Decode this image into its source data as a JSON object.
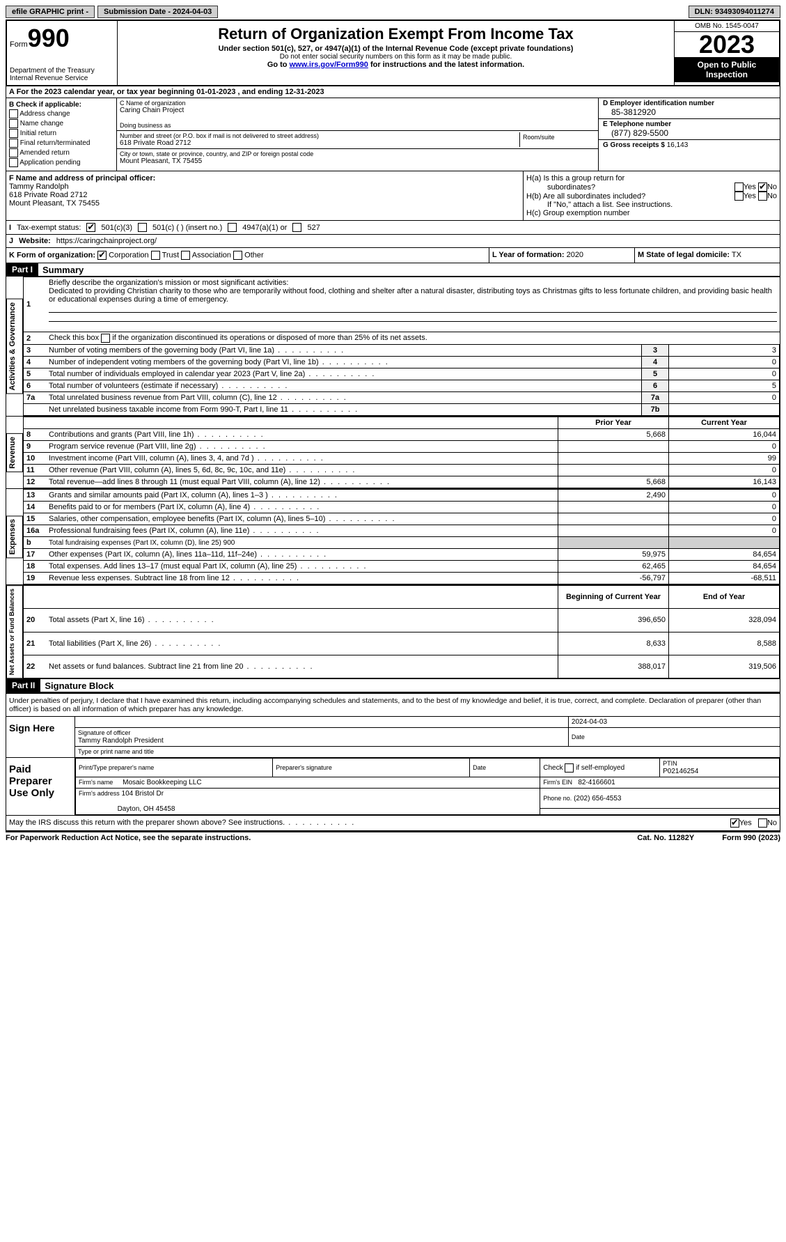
{
  "topbar": {
    "efile": "efile GRAPHIC print -",
    "submission": "Submission Date - 2024-04-03",
    "dln": "DLN: 93493094011274"
  },
  "header": {
    "form_label": "Form",
    "form_num": "990",
    "dept": "Department of the Treasury",
    "irs": "Internal Revenue Service",
    "title": "Return of Organization Exempt From Income Tax",
    "sub1": "Under section 501(c), 527, or 4947(a)(1) of the Internal Revenue Code (except private foundations)",
    "sub2": "Do not enter social security numbers on this form as it may be made public.",
    "sub3_pre": "Go to ",
    "sub3_link": "www.irs.gov/Form990",
    "sub3_post": " for instructions and the latest information.",
    "omb": "OMB No. 1545-0047",
    "year": "2023",
    "open": "Open to Public Inspection"
  },
  "rowA": "A  For the 2023 calendar year, or tax year beginning 01-01-2023    , and ending 12-31-2023",
  "boxB": {
    "label": "B Check if applicable:",
    "opts": [
      "Address change",
      "Name change",
      "Initial return",
      "Final return/terminated",
      "Amended return",
      "Application pending"
    ]
  },
  "boxC": {
    "name_lbl": "C Name of organization",
    "name": "Caring Chain Project",
    "dba_lbl": "Doing business as",
    "dba": "",
    "street_lbl": "Number and street (or P.O. box if mail is not delivered to street address)",
    "street": "618 Private Road 2712",
    "room_lbl": "Room/suite",
    "city_lbl": "City or town, state or province, country, and ZIP or foreign postal code",
    "city": "Mount Pleasant, TX  75455"
  },
  "boxD": {
    "ein_lbl": "D Employer identification number",
    "ein": "85-3812920",
    "phone_lbl": "E Telephone number",
    "phone": "(877) 829-5500",
    "gross_lbl": "G Gross receipts $",
    "gross": "16,143"
  },
  "boxF": {
    "lbl": "F  Name and address of principal officer:",
    "name": "Tammy Randolph",
    "street": "618 Private Road 2712",
    "city": "Mount Pleasant, TX  75455"
  },
  "boxH": {
    "ha": "H(a)  Is this a group return for",
    "ha2": "subordinates?",
    "hb": "H(b)  Are all subordinates included?",
    "hb2": "If \"No,\" attach a list. See instructions.",
    "hc": "H(c)  Group exemption number",
    "yes": "Yes",
    "no": "No"
  },
  "rowI": {
    "lbl": "Tax-exempt status:",
    "o1": "501(c)(3)",
    "o2": "501(c) (  ) (insert no.)",
    "o3": "4947(a)(1) or",
    "o4": "527"
  },
  "rowJ": {
    "lbl": "Website:",
    "val": "https://caringchainproject.org/"
  },
  "rowK": {
    "lbl": "K Form of organization:",
    "o1": "Corporation",
    "o2": "Trust",
    "o3": "Association",
    "o4": "Other"
  },
  "rowL": {
    "lbl": "L Year of formation:",
    "val": "2020"
  },
  "rowM": {
    "lbl": "M State of legal domicile:",
    "val": "TX"
  },
  "parts": {
    "p1": "Part I",
    "p1t": "Summary",
    "p2": "Part II",
    "p2t": "Signature Block"
  },
  "summary": {
    "l1_lbl": "Briefly describe the organization's mission or most significant activities:",
    "l1_text": "Dedicated to providing Christian charity to those who are temporarily without food, clothing and shelter after a natural disaster, distributing toys as Christmas gifts to less fortunate children, and providing basic health or educational expenses during a time of emergency.",
    "l2": "Check this box       if the organization discontinued its operations or disposed of more than 25% of its net assets.",
    "lines_ag": [
      {
        "n": "3",
        "t": "Number of voting members of the governing body (Part VI, line 1a)",
        "b": "3",
        "v": "3"
      },
      {
        "n": "4",
        "t": "Number of independent voting members of the governing body (Part VI, line 1b)",
        "b": "4",
        "v": "0"
      },
      {
        "n": "5",
        "t": "Total number of individuals employed in calendar year 2023 (Part V, line 2a)",
        "b": "5",
        "v": "0"
      },
      {
        "n": "6",
        "t": "Total number of volunteers (estimate if necessary)",
        "b": "6",
        "v": "5"
      },
      {
        "n": "7a",
        "t": "Total unrelated business revenue from Part VIII, column (C), line 12",
        "b": "7a",
        "v": "0"
      },
      {
        "n": "",
        "t": "Net unrelated business taxable income from Form 990-T, Part I, line 11",
        "b": "7b",
        "v": ""
      }
    ],
    "hdr_prior": "Prior Year",
    "hdr_current": "Current Year",
    "rev": [
      {
        "n": "8",
        "t": "Contributions and grants (Part VIII, line 1h)",
        "p": "5,668",
        "c": "16,044"
      },
      {
        "n": "9",
        "t": "Program service revenue (Part VIII, line 2g)",
        "p": "",
        "c": "0"
      },
      {
        "n": "10",
        "t": "Investment income (Part VIII, column (A), lines 3, 4, and 7d )",
        "p": "",
        "c": "99"
      },
      {
        "n": "11",
        "t": "Other revenue (Part VIII, column (A), lines 5, 6d, 8c, 9c, 10c, and 11e)",
        "p": "",
        "c": "0"
      },
      {
        "n": "12",
        "t": "Total revenue—add lines 8 through 11 (must equal Part VIII, column (A), line 12)",
        "p": "5,668",
        "c": "16,143"
      }
    ],
    "exp": [
      {
        "n": "13",
        "t": "Grants and similar amounts paid (Part IX, column (A), lines 1–3 )",
        "p": "2,490",
        "c": "0"
      },
      {
        "n": "14",
        "t": "Benefits paid to or for members (Part IX, column (A), line 4)",
        "p": "",
        "c": "0"
      },
      {
        "n": "15",
        "t": "Salaries, other compensation, employee benefits (Part IX, column (A), lines 5–10)",
        "p": "",
        "c": "0"
      },
      {
        "n": "16a",
        "t": "Professional fundraising fees (Part IX, column (A), line 11e)",
        "p": "",
        "c": "0"
      },
      {
        "n": "b",
        "t": "Total fundraising expenses (Part IX, column (D), line 25) 900",
        "p": null,
        "c": null
      },
      {
        "n": "17",
        "t": "Other expenses (Part IX, column (A), lines 11a–11d, 11f–24e)",
        "p": "59,975",
        "c": "84,654"
      },
      {
        "n": "18",
        "t": "Total expenses. Add lines 13–17 (must equal Part IX, column (A), line 25)",
        "p": "62,465",
        "c": "84,654"
      },
      {
        "n": "19",
        "t": "Revenue less expenses. Subtract line 18 from line 12",
        "p": "-56,797",
        "c": "-68,511"
      }
    ],
    "hdr_begin": "Beginning of Current Year",
    "hdr_end": "End of Year",
    "net": [
      {
        "n": "20",
        "t": "Total assets (Part X, line 16)",
        "p": "396,650",
        "c": "328,094"
      },
      {
        "n": "21",
        "t": "Total liabilities (Part X, line 26)",
        "p": "8,633",
        "c": "8,588"
      },
      {
        "n": "22",
        "t": "Net assets or fund balances. Subtract line 21 from line 20",
        "p": "388,017",
        "c": "319,506"
      }
    ],
    "tabs": {
      "ag": "Activities & Governance",
      "rev": "Revenue",
      "exp": "Expenses",
      "net": "Net Assets or Fund Balances"
    }
  },
  "sig": {
    "declare": "Under penalties of perjury, I declare that I have examined this return, including accompanying schedules and statements, and to the best of my knowledge and belief, it is true, correct, and complete. Declaration of preparer (other than officer) is based on all information of which preparer has any knowledge.",
    "sign_here": "Sign Here",
    "sig_officer_lbl": "Signature of officer",
    "date_lbl": "Date",
    "date_val": "2024-04-03",
    "officer_name": "Tammy Randolph President",
    "type_lbl": "Type or print name and title",
    "paid": "Paid Preparer Use Only",
    "prep_name_lbl": "Print/Type preparer's name",
    "prep_sig_lbl": "Preparer's signature",
    "check_self": "Check        if self-employed",
    "ptin_lbl": "PTIN",
    "ptin": "P02146254",
    "firm_name_lbl": "Firm's name",
    "firm_name": "Mosaic Bookkeeping LLC",
    "firm_ein_lbl": "Firm's EIN",
    "firm_ein": "82-4166601",
    "firm_addr_lbl": "Firm's address",
    "firm_addr1": "104 Bristol Dr",
    "firm_addr2": "Dayton, OH  45458",
    "firm_phone_lbl": "Phone no.",
    "firm_phone": "(202) 656-4553",
    "discuss": "May the IRS discuss this return with the preparer shown above? See instructions."
  },
  "footer": {
    "left": "For Paperwork Reduction Act Notice, see the separate instructions.",
    "mid": "Cat. No. 11282Y",
    "right": "Form 990 (2023)"
  }
}
